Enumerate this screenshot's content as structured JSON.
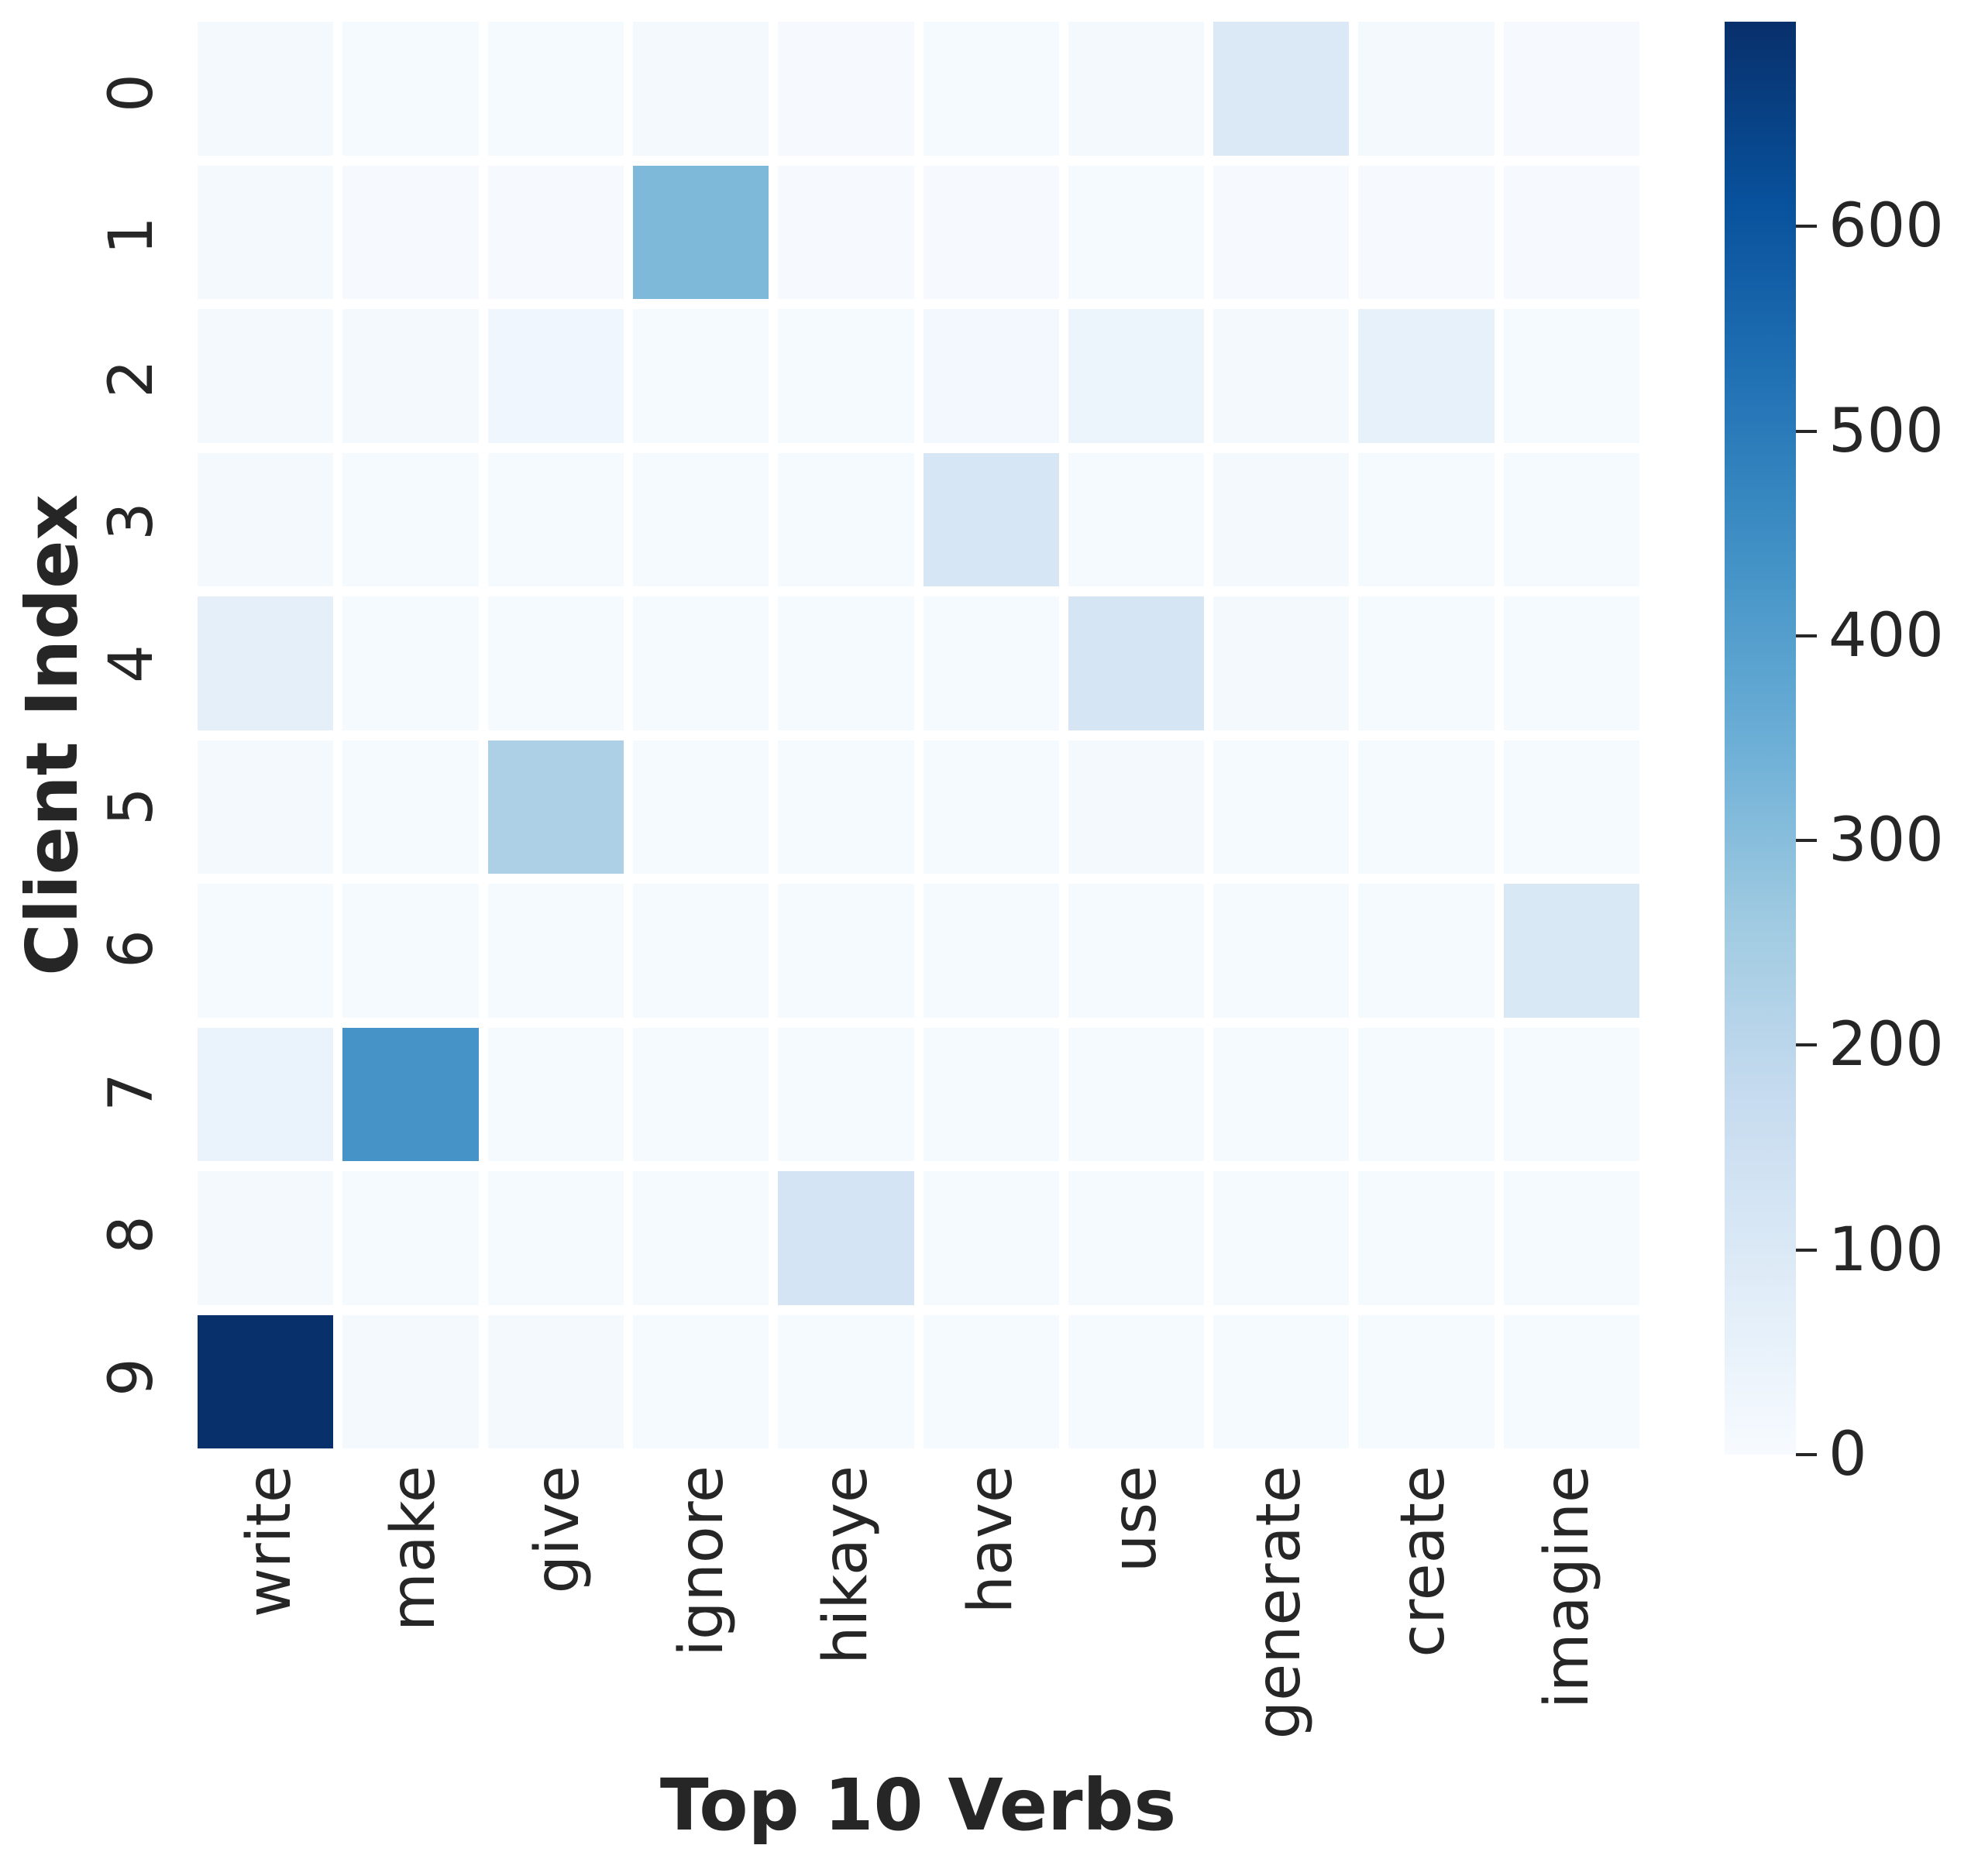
{
  "figure": {
    "background": "#ffffff",
    "text_color": "#262626"
  },
  "chart_data": {
    "type": "heatmap",
    "xlabel": "Top 10 Verbs",
    "ylabel": "Client Index",
    "x_categories": [
      "write",
      "make",
      "give",
      "ignore",
      "hikaye",
      "have",
      "use",
      "generate",
      "create",
      "imagine"
    ],
    "y_categories": [
      "0",
      "1",
      "2",
      "3",
      "4",
      "5",
      "6",
      "7",
      "8",
      "9"
    ],
    "values": [
      [
        12,
        8,
        8,
        10,
        5,
        8,
        10,
        100,
        10,
        5
      ],
      [
        10,
        5,
        5,
        315,
        5,
        5,
        8,
        5,
        5,
        5
      ],
      [
        12,
        10,
        25,
        8,
        8,
        18,
        35,
        10,
        55,
        8
      ],
      [
        10,
        8,
        8,
        8,
        8,
        115,
        8,
        12,
        8,
        8
      ],
      [
        65,
        8,
        8,
        8,
        8,
        8,
        120,
        12,
        8,
        8
      ],
      [
        10,
        8,
        230,
        8,
        8,
        8,
        10,
        8,
        8,
        8
      ],
      [
        8,
        8,
        8,
        8,
        8,
        8,
        8,
        8,
        8,
        105
      ],
      [
        45,
        430,
        8,
        8,
        8,
        8,
        8,
        8,
        8,
        8
      ],
      [
        10,
        8,
        8,
        8,
        125,
        8,
        8,
        8,
        8,
        8
      ],
      [
        700,
        12,
        10,
        8,
        8,
        8,
        8,
        8,
        8,
        8
      ]
    ],
    "vmin": 0,
    "vmax": 700,
    "grid_gap_color": "#ffffff",
    "legend_position": "right-colorbar",
    "colormap": {
      "name": "Blues",
      "anchors": [
        "#f7fbff",
        "#deebf7",
        "#c6dbef",
        "#9ecae1",
        "#6baed6",
        "#4292c6",
        "#2171b5",
        "#08519c",
        "#08306b"
      ]
    },
    "colorbar": {
      "ticks": [
        0,
        100,
        200,
        300,
        400,
        500,
        600
      ]
    }
  }
}
